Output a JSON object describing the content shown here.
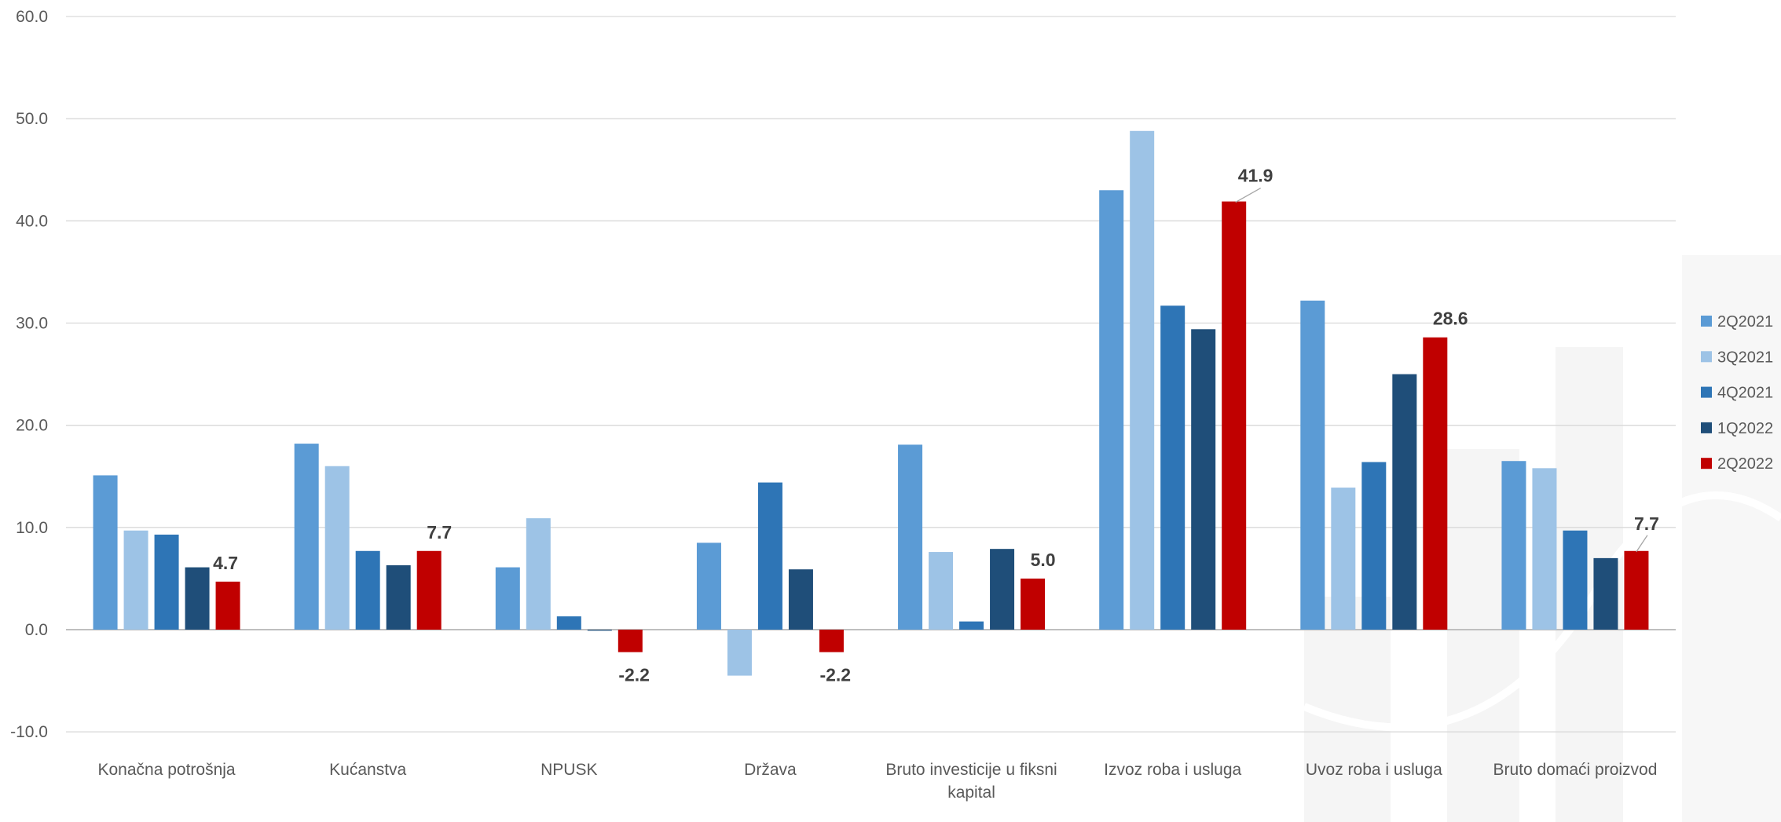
{
  "chart_data": {
    "type": "bar",
    "categories": [
      "Konačna potrošnja",
      "Kućanstva",
      "NPUSK",
      "Država",
      "Bruto investicije u fiksni kapital",
      "Izvoz roba i usluga",
      "Uvoz roba i usluga",
      "Bruto domaći proizvod"
    ],
    "series": [
      {
        "name": "2Q2021",
        "color": "#5b9bd5",
        "values": [
          15.1,
          18.2,
          6.1,
          8.5,
          18.1,
          43.0,
          32.2,
          16.5
        ]
      },
      {
        "name": "3Q2021",
        "color": "#9dc3e6",
        "values": [
          9.7,
          16.0,
          10.9,
          -4.5,
          7.6,
          48.8,
          13.9,
          15.8
        ]
      },
      {
        "name": "4Q2021",
        "color": "#2e75b6",
        "values": [
          9.3,
          7.7,
          1.3,
          14.4,
          0.8,
          31.7,
          16.4,
          9.7
        ]
      },
      {
        "name": "1Q2022",
        "color": "#1f4e79",
        "values": [
          6.1,
          6.3,
          -0.1,
          5.9,
          7.9,
          29.4,
          25.0,
          7.0
        ]
      },
      {
        "name": "2Q2022",
        "color": "#c00000",
        "values": [
          4.7,
          7.7,
          -2.2,
          -2.2,
          5.0,
          41.9,
          28.6,
          7.7
        ]
      }
    ],
    "data_labels": {
      "series": "2Q2022",
      "values": [
        "4.7",
        "7.7",
        "-2.2",
        "-2.2",
        "5.0",
        "41.9",
        "28.6",
        "7.7"
      ]
    },
    "ylim": [
      -10,
      60
    ],
    "yticks": [
      "-10.0",
      "0.0",
      "10.0",
      "20.0",
      "30.0",
      "40.0",
      "50.0",
      "60.0"
    ],
    "grid": true,
    "legend_position": "right",
    "title": "",
    "xlabel": "",
    "ylabel": ""
  }
}
